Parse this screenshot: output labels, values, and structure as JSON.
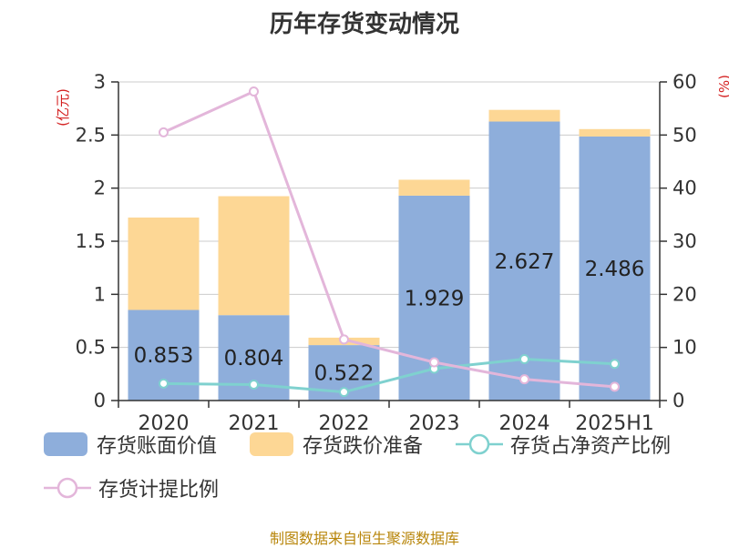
{
  "chart_data": {
    "type": "bar",
    "title": "历年存货变动情况",
    "left_unit": "(亿元)",
    "right_unit": "(%)",
    "categories": [
      "2020",
      "2021",
      "2022",
      "2023",
      "2024",
      "2025H1"
    ],
    "left_ylim": [
      0,
      3
    ],
    "left_ticks": [
      "0",
      "0.5",
      "1",
      "1.5",
      "2",
      "2.5",
      "3"
    ],
    "right_ylim": [
      0,
      60
    ],
    "right_ticks": [
      "0",
      "10",
      "20",
      "30",
      "40",
      "50",
      "60"
    ],
    "grid": true,
    "legend_position": "bottom",
    "series": [
      {
        "name": "存货账面价值",
        "kind": "stacked-bar",
        "axis": "left",
        "color": "#8eaedb",
        "values": [
          0.853,
          0.804,
          0.522,
          1.929,
          2.627,
          2.486
        ],
        "labels": [
          "0.853",
          "0.804",
          "0.522",
          "1.929",
          "2.627",
          "2.486"
        ]
      },
      {
        "name": "存货跌价准备",
        "kind": "stacked-bar",
        "axis": "left",
        "color": "#fdd795",
        "values": [
          0.87,
          1.12,
          0.07,
          0.15,
          0.11,
          0.07
        ]
      },
      {
        "name": "存货占净资产比例",
        "kind": "line",
        "axis": "right",
        "color": "#7fd1cf",
        "values": [
          3.2,
          3.0,
          1.6,
          6.0,
          7.8,
          6.9
        ]
      },
      {
        "name": "存货计提比例",
        "kind": "line",
        "axis": "right",
        "color": "#e3b6da",
        "values": [
          50.5,
          58.2,
          11.5,
          7.2,
          4.0,
          2.6
        ]
      }
    ]
  },
  "footer": {
    "source": "制图数据来自恒生聚源数据库"
  }
}
